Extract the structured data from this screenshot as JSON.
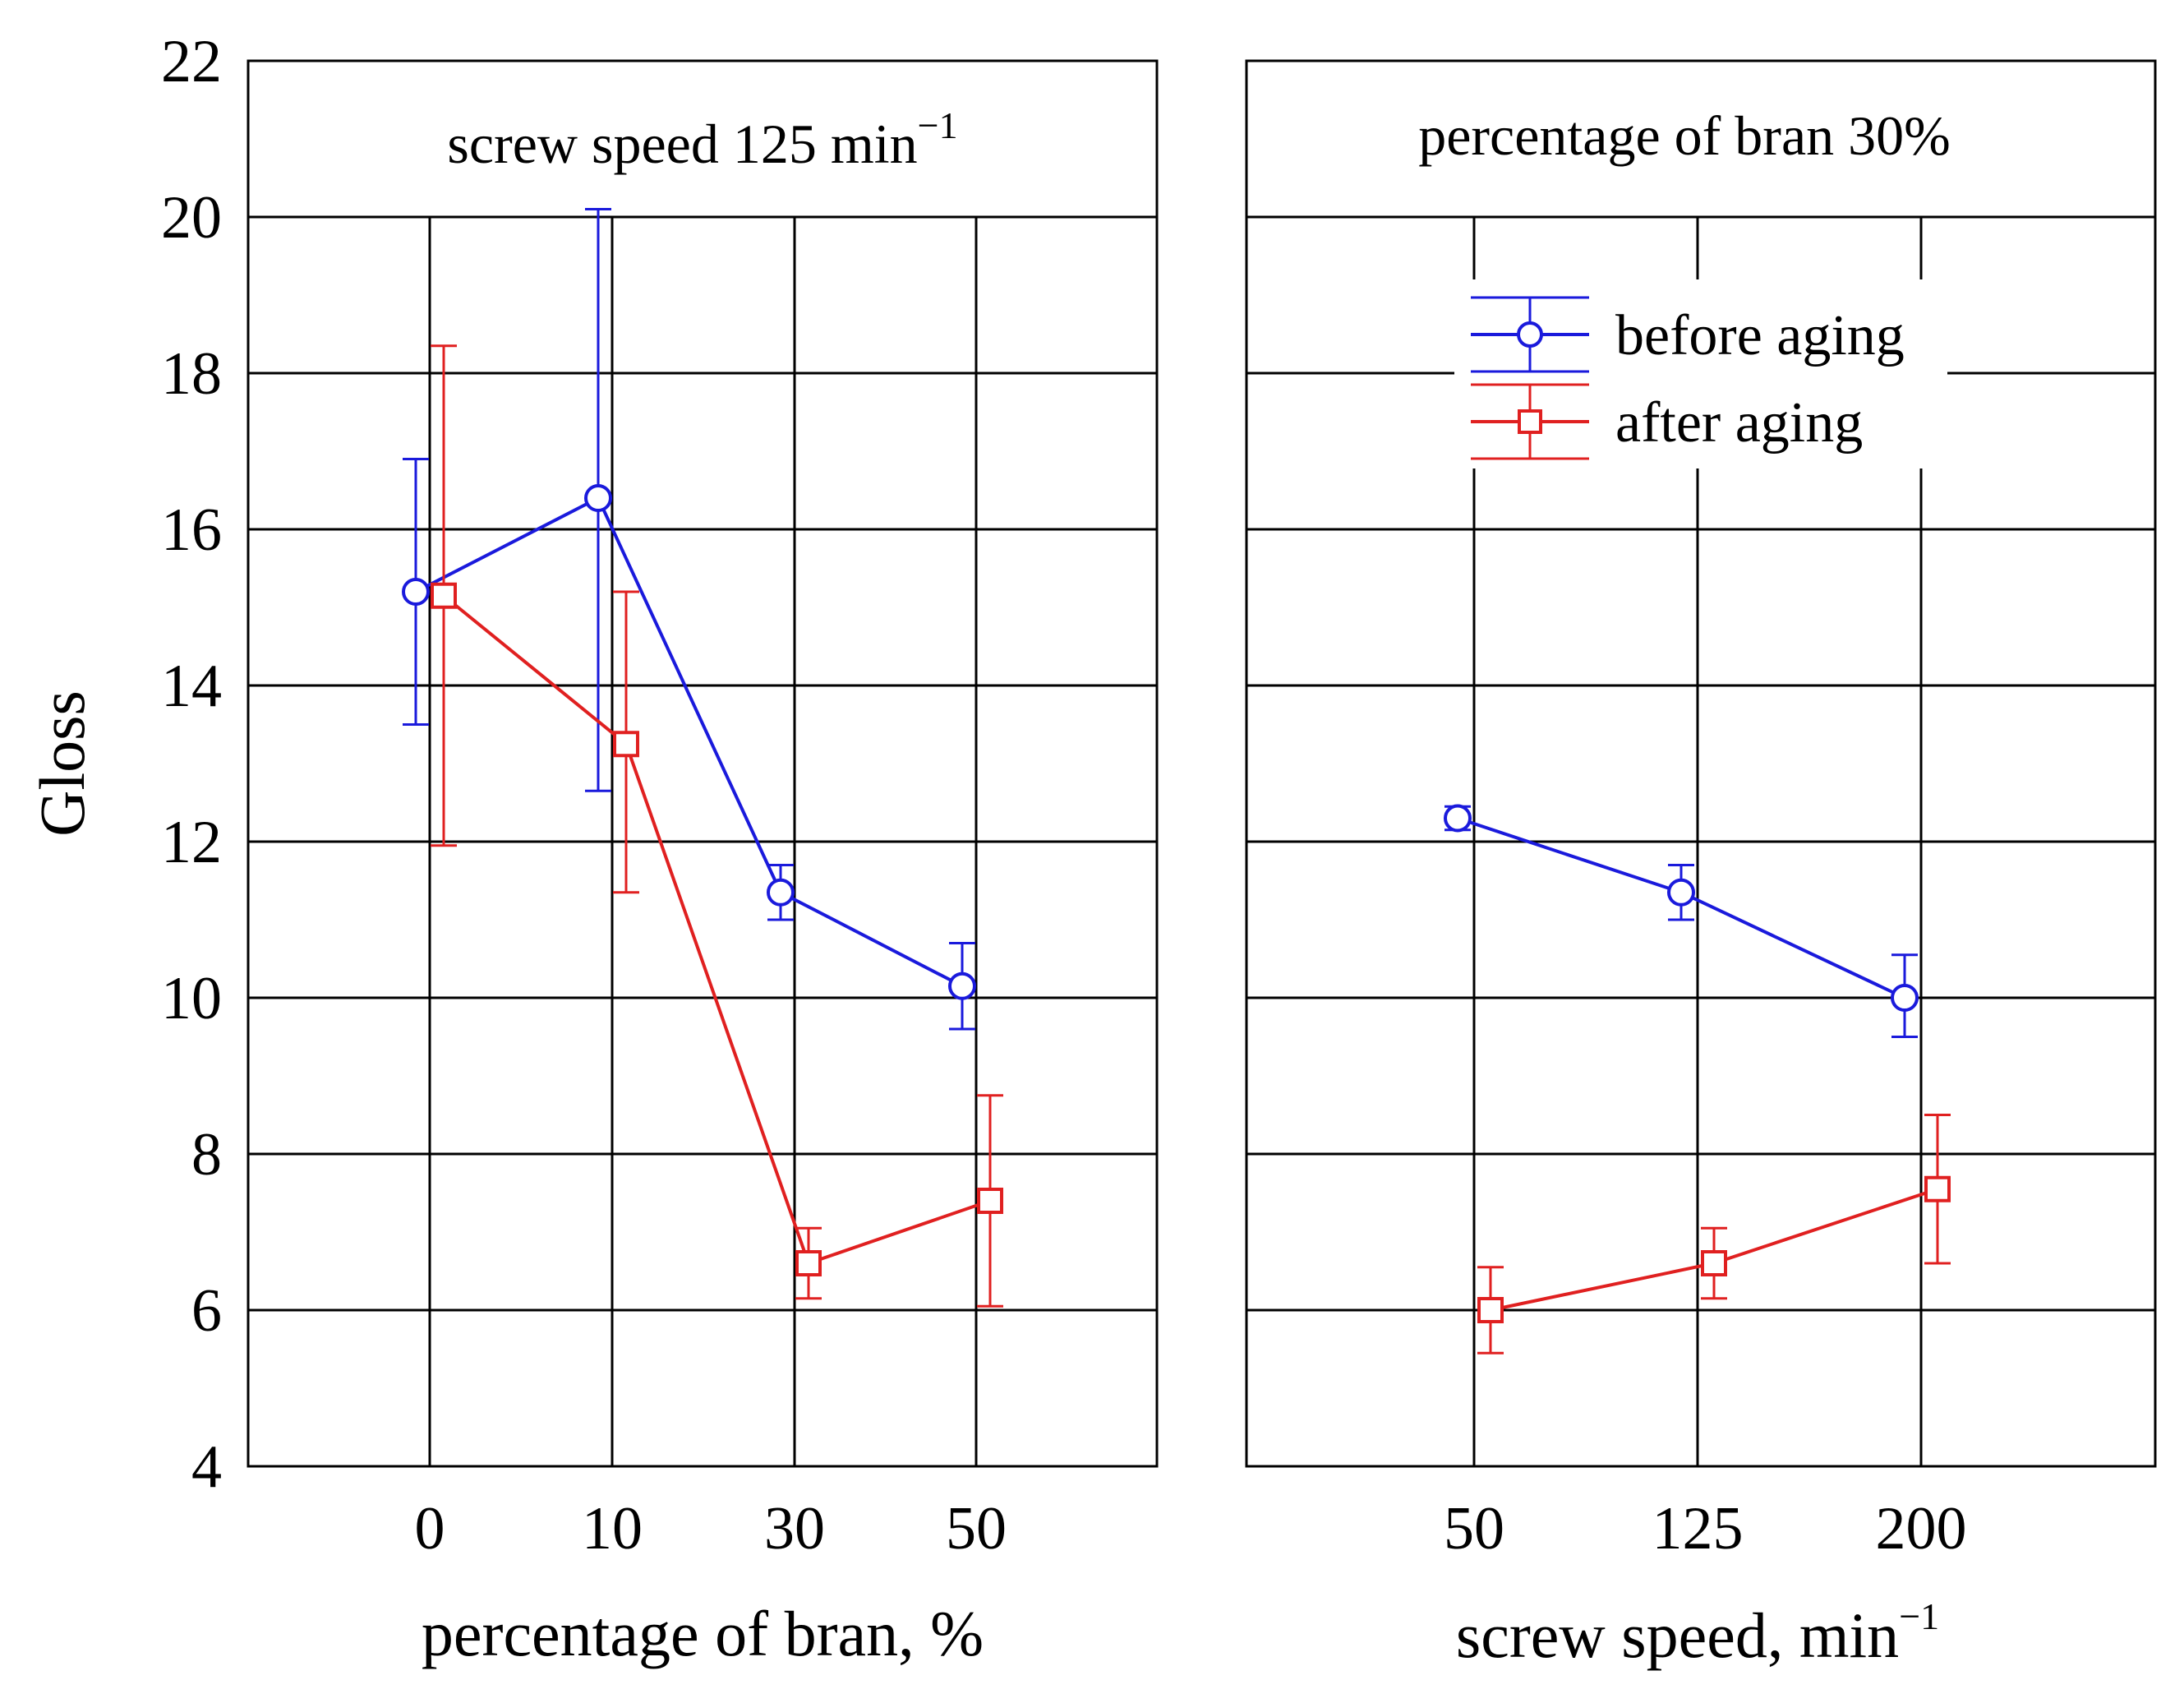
{
  "chart_data": [
    {
      "type": "line",
      "panel": "left",
      "title": "screw speed 125 min",
      "title_superscript": "−1",
      "xlabel": "percentage of bran, %",
      "ylabel": "Gloss",
      "ylim": [
        4,
        22
      ],
      "yticks": [
        4,
        6,
        8,
        10,
        12,
        14,
        16,
        18,
        20,
        22
      ],
      "categories": [
        "0",
        "10",
        "30",
        "50"
      ],
      "grid": true,
      "series": [
        {
          "name": "before aging",
          "color": "#1a1adc",
          "marker": "circle",
          "values": [
            15.2,
            16.4,
            11.35,
            10.15
          ],
          "err_low": [
            13.5,
            12.65,
            11.0,
            9.6
          ],
          "err_high": [
            16.9,
            20.1,
            11.7,
            10.7
          ]
        },
        {
          "name": "after aging",
          "color": "#e02020",
          "marker": "square",
          "values": [
            15.15,
            13.25,
            6.6,
            7.4
          ],
          "err_low": [
            11.95,
            11.35,
            6.15,
            6.05
          ],
          "err_high": [
            18.35,
            15.2,
            7.05,
            8.75
          ]
        }
      ]
    },
    {
      "type": "line",
      "panel": "right",
      "title": "percentage of bran 30%",
      "xlabel": "screw speed, min",
      "xlabel_superscript": "−1",
      "ylim": [
        4,
        22
      ],
      "categories": [
        "50",
        "125",
        "200"
      ],
      "grid": true,
      "legend": "top-center",
      "series": [
        {
          "name": "before aging",
          "color": "#1a1adc",
          "marker": "circle",
          "values": [
            12.3,
            11.35,
            10.0
          ],
          "err_low": [
            12.15,
            11.0,
            9.5
          ],
          "err_high": [
            12.45,
            11.7,
            10.55
          ]
        },
        {
          "name": "after aging",
          "color": "#e02020",
          "marker": "square",
          "values": [
            6.0,
            6.6,
            7.55
          ],
          "err_low": [
            5.45,
            6.15,
            6.6
          ],
          "err_high": [
            6.55,
            7.05,
            8.5
          ]
        }
      ]
    }
  ]
}
